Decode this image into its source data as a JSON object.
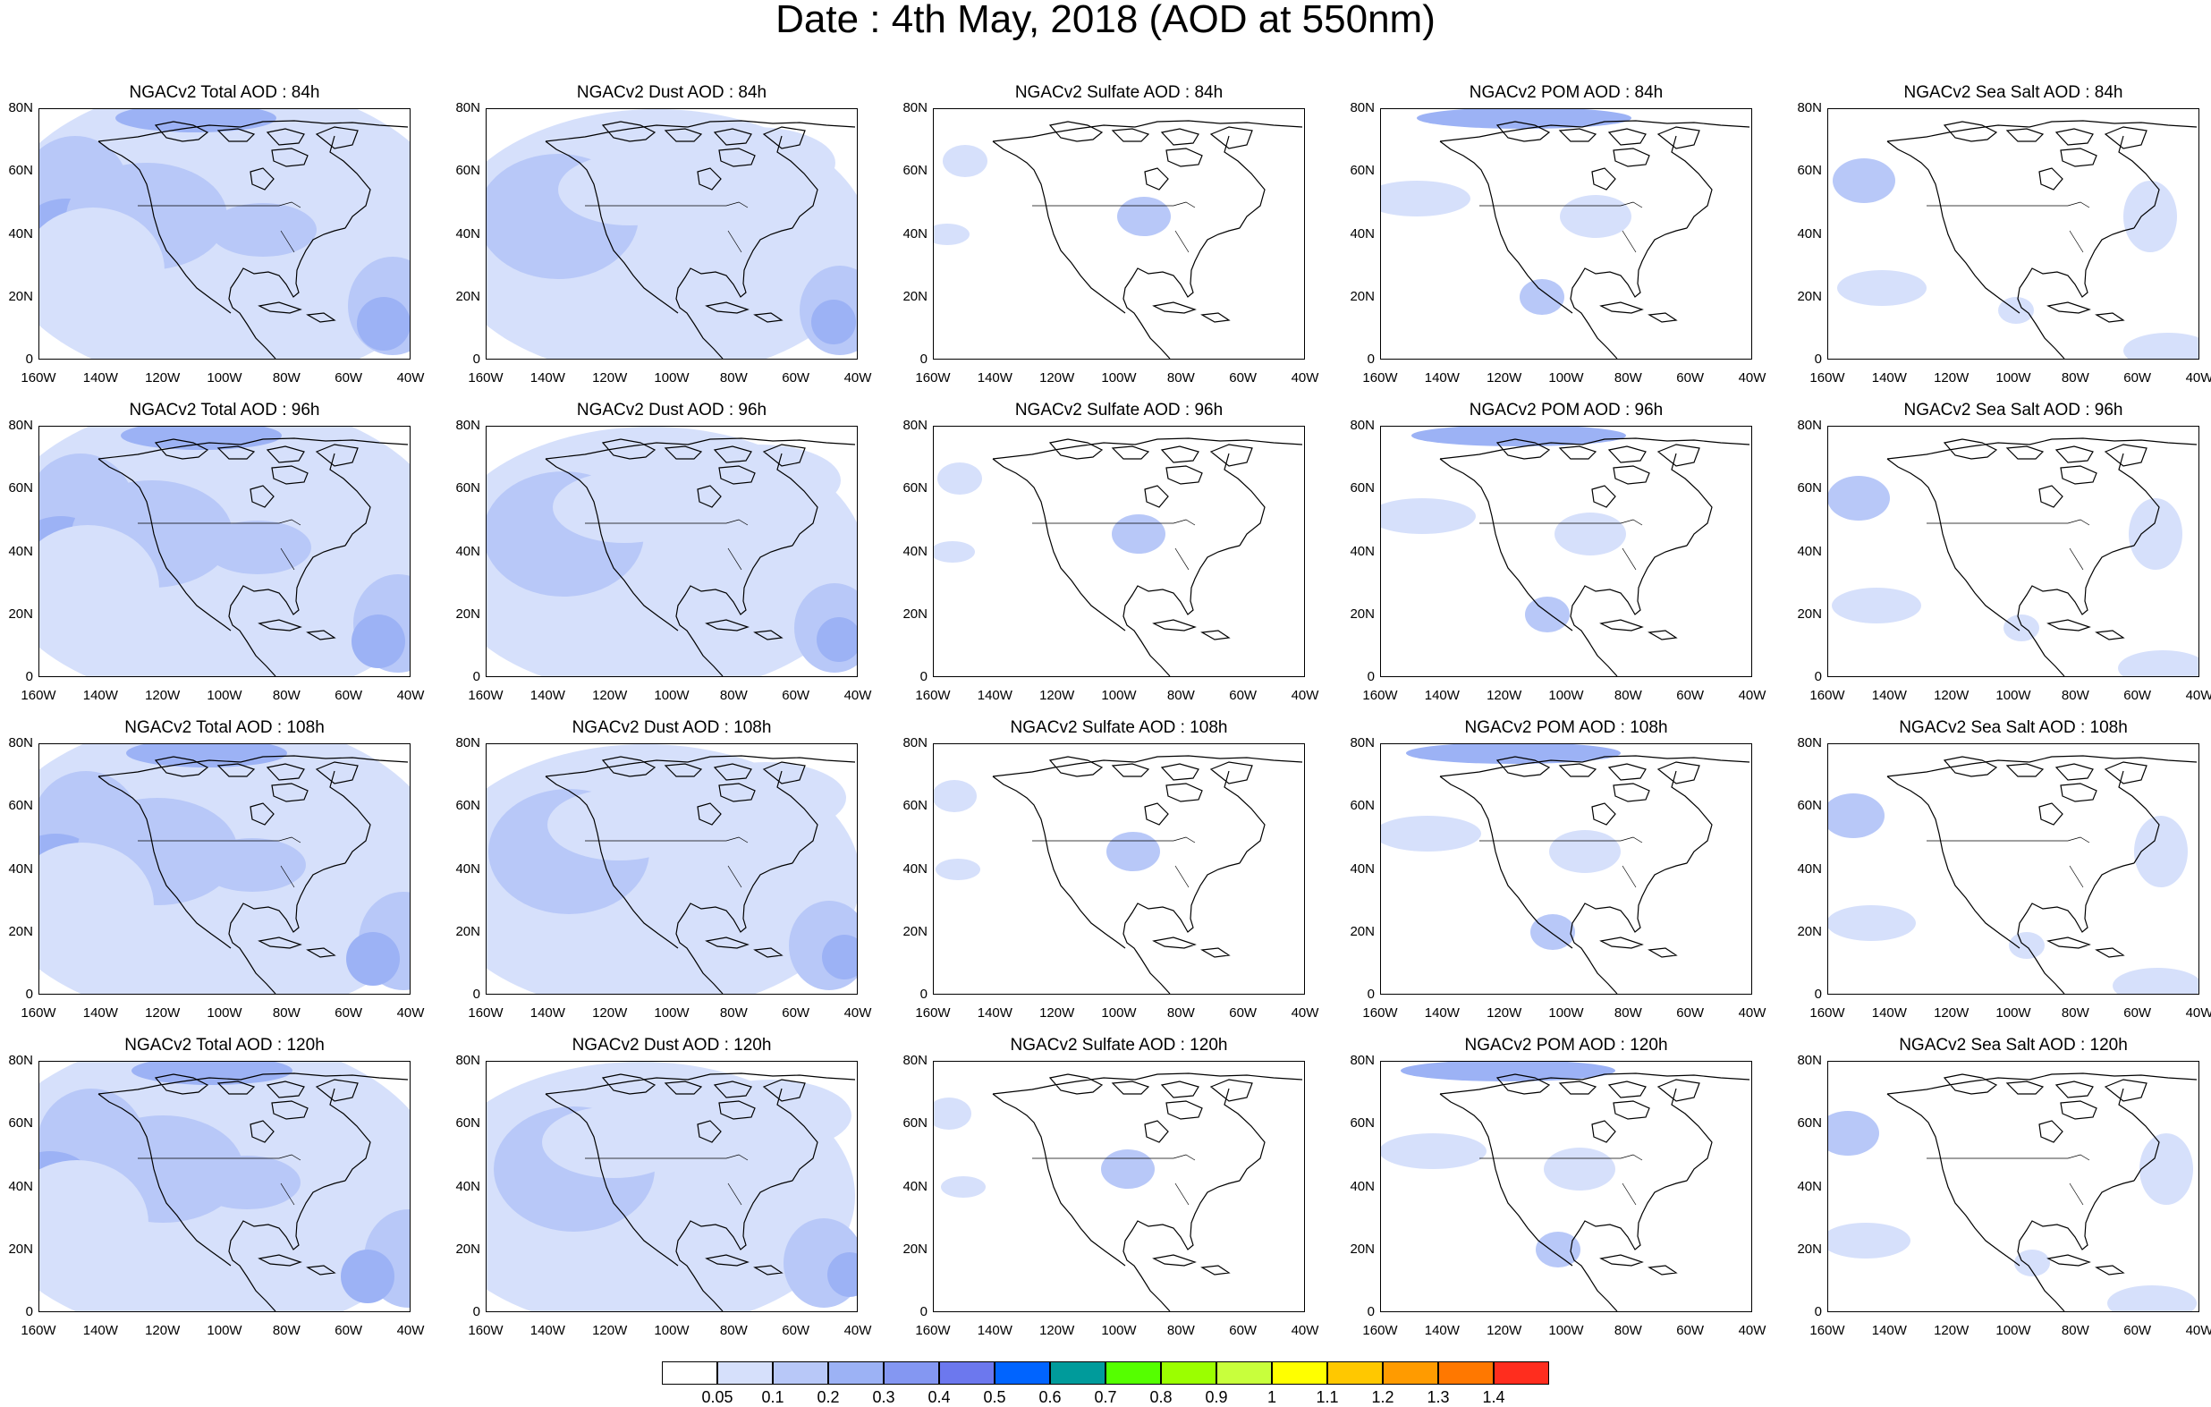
{
  "title": "Date : 4th May, 2018 (AOD at 550nm)",
  "panel_titles": [
    [
      "NGACv2 Total AOD : 84h",
      "NGACv2 Dust AOD : 84h",
      "NGACv2 Sulfate AOD : 84h",
      "NGACv2 POM AOD : 84h",
      "NGACv2 Sea Salt AOD : 84h"
    ],
    [
      "NGACv2 Total AOD : 96h",
      "NGACv2 Dust AOD : 96h",
      "NGACv2 Sulfate AOD : 96h",
      "NGACv2 POM AOD : 96h",
      "NGACv2 Sea Salt AOD : 96h"
    ],
    [
      "NGACv2 Total AOD : 108h",
      "NGACv2 Dust AOD : 108h",
      "NGACv2 Sulfate AOD : 108h",
      "NGACv2 POM AOD : 108h",
      "NGACv2 Sea Salt AOD : 108h"
    ],
    [
      "NGACv2 Total AOD : 120h",
      "NGACv2 Dust AOD : 120h",
      "NGACv2 Sulfate AOD : 120h",
      "NGACv2 POM AOD : 120h",
      "NGACv2 Sea Salt  AOD : 120h"
    ]
  ],
  "lat_ticks": [
    "80N",
    "60N",
    "40N",
    "20N",
    "0"
  ],
  "lon_ticks": [
    "160W",
    "140W",
    "120W",
    "100W",
    "80W",
    "60W",
    "40W"
  ],
  "colorbar": {
    "labels": [
      "0.05",
      "0.1",
      "0.2",
      "0.3",
      "0.4",
      "0.5",
      "0.6",
      "0.7",
      "0.8",
      "0.9",
      "1",
      "1.1",
      "1.2",
      "1.3",
      "1.4"
    ],
    "colors": [
      "#ffffff",
      "#d6e0fb",
      "#b8c8f8",
      "#9cb2f5",
      "#8497f2",
      "#6c78ee",
      "#0064ff",
      "#009b9b",
      "#55ff00",
      "#9bff00",
      "#c8ff3c",
      "#ffff00",
      "#ffc800",
      "#ff9b00",
      "#ff7800",
      "#ff2d1e"
    ]
  }
}
